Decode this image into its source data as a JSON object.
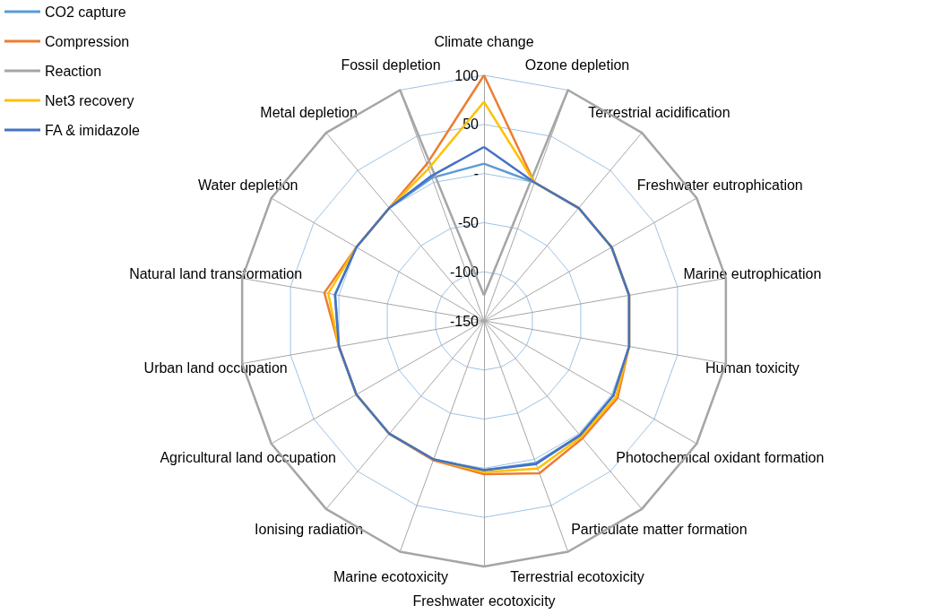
{
  "chart_data": {
    "type": "radar",
    "categories": [
      "Climate change",
      "Ozone depletion",
      "Terrestrial acidification",
      "Freshwater eutrophication",
      "Marine eutrophication",
      "Human toxicity",
      "Photochemical oxidant formation",
      "Particulate matter formation",
      "Terrestrial ecotoxicity",
      "Freshwater ecotoxicity",
      "Marine ecotoxicity",
      "Ionising radiation",
      "Agricultural land occupation",
      "Urban land occupation",
      "Natural land transformation",
      "Water depletion",
      "Metal depletion",
      "Fossil depletion"
    ],
    "series": [
      {
        "name": "CO2 capture",
        "color": "#5b9bd5",
        "values": [
          10,
          0,
          0,
          0,
          0,
          0,
          2,
          2,
          4,
          2,
          0,
          0,
          0,
          0,
          4,
          0,
          0,
          5
        ]
      },
      {
        "name": "Compression",
        "color": "#ed7d31",
        "values": [
          100,
          0,
          0,
          0,
          0,
          0,
          7,
          6,
          15,
          6,
          1,
          0,
          0,
          0,
          15,
          0,
          0,
          20
        ]
      },
      {
        "name": "Reaction",
        "color": "#a5a5a5",
        "values": [
          -124,
          100,
          100,
          100,
          100,
          100,
          100,
          100,
          100,
          100,
          100,
          100,
          100,
          100,
          100,
          100,
          100,
          100
        ]
      },
      {
        "name": "Net3 recovery",
        "color": "#ffc000",
        "values": [
          73,
          0,
          0,
          0,
          0,
          0,
          5,
          4,
          10,
          4,
          0,
          0,
          0,
          0,
          11,
          0,
          0,
          15
        ]
      },
      {
        "name": "FA & imidazole",
        "color": "#4472c4",
        "values": [
          27,
          0,
          0,
          0,
          0,
          0,
          2,
          2,
          5,
          2,
          0,
          0,
          0,
          0,
          4,
          0,
          0,
          7
        ]
      }
    ],
    "ylim": [
      -150,
      100
    ],
    "yticks": [
      -150,
      -100,
      -50,
      {
        "value": 0,
        "label": "-"
      },
      50,
      100
    ],
    "grid": true,
    "legend": "top left",
    "marker": "none",
    "line_style": "solid"
  }
}
